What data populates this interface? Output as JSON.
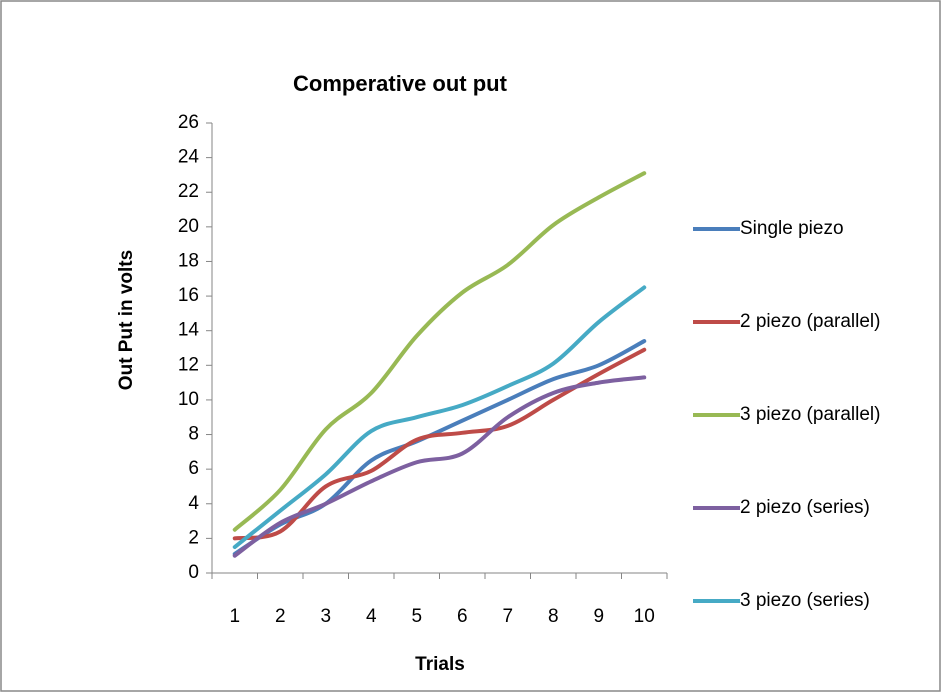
{
  "chart_data": {
    "type": "line",
    "title": "Comperative out put",
    "x_label": "Trials",
    "y_label": "Out Put in volts",
    "categories": [
      "1",
      "2",
      "3",
      "4",
      "5",
      "6",
      "7",
      "8",
      "9",
      "10"
    ],
    "ylim": [
      0,
      26
    ],
    "yticks": [
      0,
      2,
      4,
      6,
      8,
      10,
      12,
      14,
      16,
      18,
      20,
      22,
      24,
      26
    ],
    "grid": false,
    "smooth": true,
    "legend": "right",
    "series": [
      {
        "name": "Single piezo",
        "color": "#4a7ebb",
        "values": [
          1.1,
          2.8,
          4.0,
          6.5,
          7.6,
          8.8,
          10.0,
          11.2,
          12.0,
          13.4
        ]
      },
      {
        "name": "2 piezo  (parallel)",
        "color": "#be4b48",
        "values": [
          2.0,
          2.4,
          5.0,
          5.9,
          7.7,
          8.1,
          8.5,
          10.0,
          11.5,
          12.9
        ]
      },
      {
        "name": "3 piezo (parallel)",
        "color": "#98b954",
        "values": [
          2.5,
          4.8,
          8.3,
          10.4,
          13.7,
          16.2,
          17.8,
          20.1,
          21.7,
          23.1
        ]
      },
      {
        "name": "2 piezo (series)",
        "color": "#7d60a0",
        "values": [
          1.0,
          2.9,
          4.0,
          5.3,
          6.4,
          6.9,
          9.0,
          10.4,
          11.0,
          11.3
        ]
      },
      {
        "name": "3 piezo (series)",
        "color": "#46aac5",
        "values": [
          1.5,
          3.6,
          5.7,
          8.2,
          9.0,
          9.7,
          10.8,
          12.1,
          14.5,
          16.5
        ]
      }
    ]
  }
}
